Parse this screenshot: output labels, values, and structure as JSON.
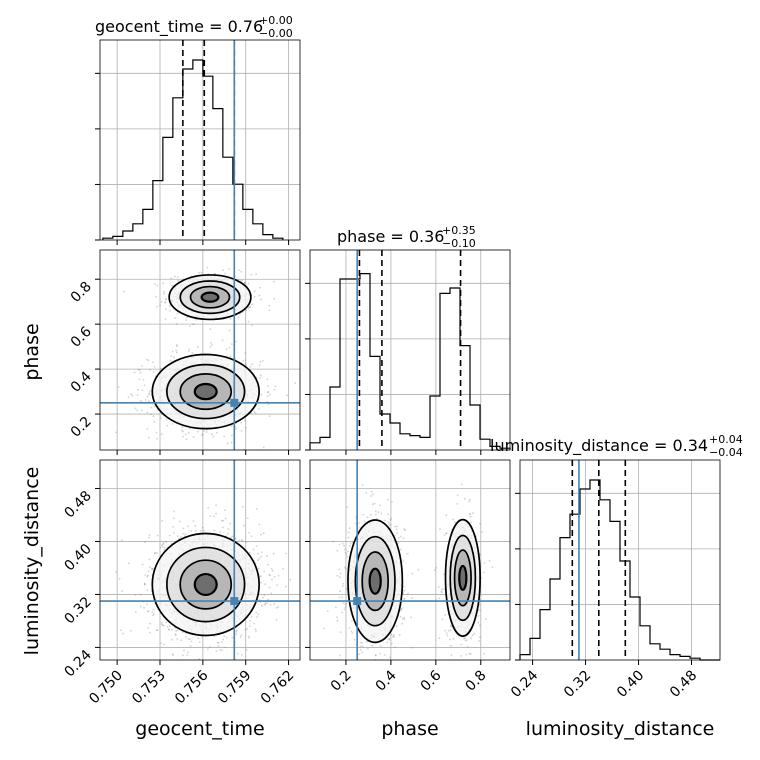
{
  "chart_data": {
    "type": "corner",
    "parameters": [
      "geocent_time",
      "phase",
      "luminosity_distance"
    ],
    "titles": {
      "geocent_time": {
        "label": "geocent_time = 0.76",
        "sup": "+0.00",
        "sub": "−0.00"
      },
      "phase": {
        "label": "phase = 0.36",
        "sup": "+0.35",
        "sub": "−0.10"
      },
      "luminosity_distance": {
        "label": "luminosity_distance = 0.34",
        "sup": "+0.04",
        "sub": "−0.04"
      }
    },
    "axis_labels": {
      "geocent_time": "geocent_time",
      "phase": "phase",
      "luminosity_distance": "luminosity_distance"
    },
    "ranges": {
      "geocent_time": [
        0.7488,
        0.7628
      ],
      "phase": [
        0.04,
        0.93
      ],
      "luminosity_distance": [
        0.221,
        0.523
      ]
    },
    "ticks": {
      "geocent_time": [
        "0.750",
        "0.753",
        "0.756",
        "0.759",
        "0.762"
      ],
      "phase_x": [
        "0.2",
        "0.4",
        "0.6",
        "0.8"
      ],
      "phase_y": [
        "0.2",
        "0.4",
        "0.6",
        "0.8"
      ],
      "luminosity_distance_x": [
        "0.24",
        "0.32",
        "0.40",
        "0.48"
      ],
      "luminosity_distance_y": [
        "0.24",
        "0.32",
        "0.40",
        "0.48"
      ]
    },
    "truths": {
      "geocent_time": 0.7582,
      "phase": 0.25,
      "luminosity_distance": 0.31
    },
    "quantiles": {
      "geocent_time": [
        0.7546,
        0.7561,
        0.7582
      ],
      "phase": [
        0.26,
        0.36,
        0.71
      ],
      "luminosity_distance": [
        0.3,
        0.34,
        0.38
      ]
    },
    "histograms": {
      "geocent_time": {
        "edges_start": 0.749,
        "bin_width": 0.0007,
        "counts": [
          0.01,
          0.02,
          0.05,
          0.09,
          0.17,
          0.33,
          0.57,
          0.79,
          0.95,
          1.0,
          0.91,
          0.73,
          0.46,
          0.31,
          0.17,
          0.09,
          0.03,
          0.01
        ]
      },
      "phase": {
        "edges_start": 0.04,
        "bin_width": 0.0445,
        "counts": [
          0.04,
          0.07,
          0.35,
          0.95,
          0.95,
          0.98,
          0.52,
          0.2,
          0.15,
          0.09,
          0.08,
          0.07,
          0.3,
          0.87,
          0.9,
          0.58,
          0.25,
          0.06,
          0.02,
          0.01
        ]
      },
      "luminosity_distance": {
        "edges_start": 0.221,
        "bin_width": 0.0151,
        "counts": [
          0.03,
          0.12,
          0.28,
          0.45,
          0.68,
          0.81,
          0.95,
          1.0,
          0.89,
          0.77,
          0.55,
          0.35,
          0.19,
          0.09,
          0.06,
          0.03,
          0.02,
          0.01,
          0.0,
          0.0
        ]
      }
    },
    "blobs_2d": {
      "phase_vs_geocent_time": [
        {
          "cx": 0.7565,
          "cy": 0.72,
          "sx": 0.0013,
          "sy": 0.045,
          "w": 0.4
        },
        {
          "cx": 0.7562,
          "cy": 0.3,
          "sx": 0.0017,
          "sy": 0.075,
          "w": 0.6
        }
      ],
      "luminosity_distance_vs_geocent_time": [
        {
          "cx": 0.7562,
          "cy": 0.335,
          "sx": 0.0017,
          "sy": 0.035,
          "w": 1.0
        }
      ],
      "luminosity_distance_vs_phase": [
        {
          "cx": 0.33,
          "cy": 0.34,
          "sx": 0.055,
          "sy": 0.042,
          "w": 0.6
        },
        {
          "cx": 0.72,
          "cy": 0.345,
          "sx": 0.035,
          "sy": 0.04,
          "w": 0.4
        }
      ]
    },
    "grid": true,
    "colors": {
      "truth": "#4682b4",
      "line": "#000000",
      "grid": "#b0b0b0",
      "scatter": "#7f7f7f"
    }
  }
}
